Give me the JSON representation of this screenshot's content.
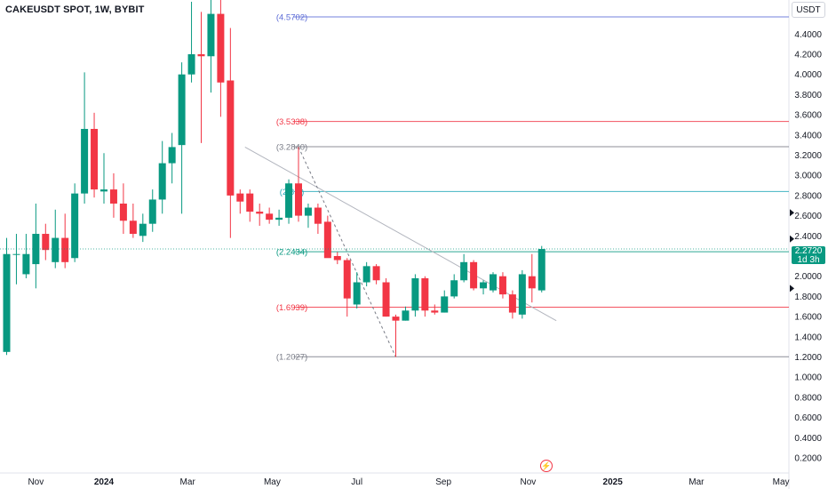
{
  "header": {
    "title": "CAKEUSDT SPOT, 1W, BYBIT",
    "currency": "USDT"
  },
  "last_price": {
    "value": "2.2720",
    "countdown": "1d 3h"
  },
  "colors": {
    "up": "#089981",
    "down": "#f23645",
    "grid": "#f0f3fa",
    "axis_text": "#131722",
    "trendline": "#b2b5be",
    "flash_icon": "#f23645"
  },
  "icons": [
    "flash-icon",
    "triangle-marker-icon"
  ],
  "chart_data": {
    "type": "candlestick",
    "x_ticks": [
      {
        "label": "Nov",
        "bold": false,
        "x": -7
      },
      {
        "label": "2024",
        "bold": true,
        "x": 0
      },
      {
        "label": "Mar",
        "bold": false,
        "x": 8.6
      },
      {
        "label": "May",
        "bold": false,
        "x": 17.3
      },
      {
        "label": "Jul",
        "bold": false,
        "x": 26.0
      },
      {
        "label": "Sep",
        "bold": false,
        "x": 34.9
      },
      {
        "label": "Nov",
        "bold": false,
        "x": 43.6
      },
      {
        "label": "2025",
        "bold": true,
        "x": 52.3
      },
      {
        "label": "Mar",
        "bold": false,
        "x": 60.9
      },
      {
        "label": "May",
        "bold": false,
        "x": 69.6
      }
    ],
    "y_ticks": [
      "4.4000",
      "4.2000",
      "4.0000",
      "3.8000",
      "3.6000",
      "3.4000",
      "3.2000",
      "3.0000",
      "2.8000",
      "2.6000",
      "2.4000",
      "2.2000",
      "2.0000",
      "1.8000",
      "1.6000",
      "1.4000",
      "1.2000",
      "1.0000",
      "0.8000",
      "0.6000",
      "0.4000",
      "0.2000"
    ],
    "ylim": [
      0.1,
      4.7
    ],
    "candles": [
      {
        "x": -10,
        "o": 1.25,
        "h": 2.38,
        "l": 1.22,
        "c": 2.22
      },
      {
        "x": -9,
        "o": 2.22,
        "h": 2.42,
        "l": 1.92,
        "c": 2.22
      },
      {
        "x": -8,
        "o": 2.02,
        "h": 2.42,
        "l": 1.98,
        "c": 2.22
      },
      {
        "x": -7,
        "o": 2.12,
        "h": 2.72,
        "l": 1.88,
        "c": 2.42
      },
      {
        "x": -6,
        "o": 2.42,
        "h": 2.52,
        "l": 2.16,
        "c": 2.26
      },
      {
        "x": -5,
        "o": 2.14,
        "h": 2.66,
        "l": 2.08,
        "c": 2.38
      },
      {
        "x": -4,
        "o": 2.38,
        "h": 2.62,
        "l": 2.08,
        "c": 2.14
      },
      {
        "x": -3,
        "o": 2.18,
        "h": 2.92,
        "l": 2.14,
        "c": 2.82
      },
      {
        "x": -2,
        "o": 2.82,
        "h": 4.02,
        "l": 2.72,
        "c": 3.46
      },
      {
        "x": -1,
        "o": 3.46,
        "h": 3.62,
        "l": 2.78,
        "c": 2.86
      },
      {
        "x": 0,
        "o": 2.84,
        "h": 3.22,
        "l": 2.72,
        "c": 2.86
      },
      {
        "x": 1,
        "o": 2.86,
        "h": 3.02,
        "l": 2.58,
        "c": 2.72
      },
      {
        "x": 2,
        "o": 2.72,
        "h": 2.92,
        "l": 2.42,
        "c": 2.55
      },
      {
        "x": 3,
        "o": 2.55,
        "h": 2.72,
        "l": 2.38,
        "c": 2.42
      },
      {
        "x": 4,
        "o": 2.4,
        "h": 2.62,
        "l": 2.34,
        "c": 2.52
      },
      {
        "x": 5,
        "o": 2.52,
        "h": 2.86,
        "l": 2.44,
        "c": 2.76
      },
      {
        "x": 6,
        "o": 2.76,
        "h": 3.34,
        "l": 2.62,
        "c": 3.12
      },
      {
        "x": 7,
        "o": 3.12,
        "h": 3.42,
        "l": 2.92,
        "c": 3.28
      },
      {
        "x": 8,
        "o": 3.3,
        "h": 4.12,
        "l": 2.62,
        "c": 4.0
      },
      {
        "x": 9,
        "o": 4.0,
        "h": 4.72,
        "l": 3.92,
        "c": 4.2
      },
      {
        "x": 10,
        "o": 4.2,
        "h": 4.62,
        "l": 3.32,
        "c": 4.18
      },
      {
        "x": 11,
        "o": 4.18,
        "h": 4.88,
        "l": 3.82,
        "c": 4.6
      },
      {
        "x": 12,
        "o": 4.6,
        "h": 4.84,
        "l": 3.58,
        "c": 3.92
      },
      {
        "x": 13,
        "o": 3.94,
        "h": 4.46,
        "l": 2.38,
        "c": 2.8
      },
      {
        "x": 14,
        "o": 2.82,
        "h": 2.86,
        "l": 2.62,
        "c": 2.74
      },
      {
        "x": 15,
        "o": 2.82,
        "h": 2.86,
        "l": 2.54,
        "c": 2.64
      },
      {
        "x": 16,
        "o": 2.64,
        "h": 2.72,
        "l": 2.5,
        "c": 2.62
      },
      {
        "x": 17,
        "o": 2.62,
        "h": 2.68,
        "l": 2.52,
        "c": 2.56
      },
      {
        "x": 18,
        "o": 2.56,
        "h": 2.66,
        "l": 2.5,
        "c": 2.58
      },
      {
        "x": 19,
        "o": 2.58,
        "h": 2.96,
        "l": 2.52,
        "c": 2.92
      },
      {
        "x": 20,
        "o": 2.92,
        "h": 3.28,
        "l": 2.54,
        "c": 2.6
      },
      {
        "x": 21,
        "o": 2.6,
        "h": 2.72,
        "l": 2.48,
        "c": 2.68
      },
      {
        "x": 22,
        "o": 2.68,
        "h": 2.72,
        "l": 2.42,
        "c": 2.52
      },
      {
        "x": 23,
        "o": 2.54,
        "h": 2.6,
        "l": 2.22,
        "c": 2.18
      },
      {
        "x": 24,
        "o": 2.2,
        "h": 2.24,
        "l": 2.12,
        "c": 2.16
      },
      {
        "x": 25,
        "o": 2.16,
        "h": 2.18,
        "l": 1.6,
        "c": 1.78
      },
      {
        "x": 26,
        "o": 1.72,
        "h": 2.04,
        "l": 1.68,
        "c": 1.94
      },
      {
        "x": 27,
        "o": 1.94,
        "h": 2.14,
        "l": 1.9,
        "c": 2.1
      },
      {
        "x": 28,
        "o": 2.1,
        "h": 2.12,
        "l": 1.92,
        "c": 1.96
      },
      {
        "x": 29,
        "o": 1.94,
        "h": 1.98,
        "l": 1.6,
        "c": 1.6
      },
      {
        "x": 30,
        "o": 1.6,
        "h": 1.62,
        "l": 1.2,
        "c": 1.56
      },
      {
        "x": 31,
        "o": 1.56,
        "h": 1.7,
        "l": 1.56,
        "c": 1.66
      },
      {
        "x": 32,
        "o": 1.66,
        "h": 2.02,
        "l": 1.6,
        "c": 1.98
      },
      {
        "x": 33,
        "o": 1.98,
        "h": 2.0,
        "l": 1.6,
        "c": 1.66
      },
      {
        "x": 34,
        "o": 1.66,
        "h": 1.72,
        "l": 1.62,
        "c": 1.64
      },
      {
        "x": 35,
        "o": 1.64,
        "h": 1.86,
        "l": 1.64,
        "c": 1.8
      },
      {
        "x": 36,
        "o": 1.8,
        "h": 2.02,
        "l": 1.78,
        "c": 1.96
      },
      {
        "x": 37,
        "o": 1.96,
        "h": 2.22,
        "l": 1.94,
        "c": 2.14
      },
      {
        "x": 38,
        "o": 2.14,
        "h": 2.16,
        "l": 1.86,
        "c": 1.88
      },
      {
        "x": 39,
        "o": 1.88,
        "h": 1.96,
        "l": 1.82,
        "c": 1.94
      },
      {
        "x": 40,
        "o": 1.86,
        "h": 2.04,
        "l": 1.84,
        "c": 2.02
      },
      {
        "x": 41,
        "o": 2.0,
        "h": 2.04,
        "l": 1.78,
        "c": 1.82
      },
      {
        "x": 42,
        "o": 1.82,
        "h": 1.86,
        "l": 1.58,
        "c": 1.64
      },
      {
        "x": 43,
        "o": 1.62,
        "h": 2.06,
        "l": 1.58,
        "c": 2.02
      },
      {
        "x": 44,
        "o": 2.0,
        "h": 2.22,
        "l": 1.74,
        "c": 1.88
      },
      {
        "x": 45,
        "o": 1.86,
        "h": 2.3,
        "l": 1.84,
        "c": 2.27
      }
    ],
    "fib_levels": [
      {
        "label": "(4.5702)",
        "value": 4.5702,
        "color": "#5b6bd6"
      },
      {
        "label": "(3.5338)",
        "value": 3.5338,
        "color": "#f23645"
      },
      {
        "label": "(3.2840)",
        "value": 3.284,
        "color": "#787b86"
      },
      {
        "label": "(2.8...)",
        "value": 2.84,
        "color": "#22a8b8"
      },
      {
        "label": "(2.2434)",
        "value": 2.2434,
        "color": "#089981"
      },
      {
        "label": "(1.6939)",
        "value": 1.6939,
        "color": "#f23645"
      },
      {
        "label": "(1.2027)",
        "value": 1.2027,
        "color": "#787b86"
      }
    ],
    "fib_label_x": 19.5,
    "fib_line_start_x": 19.5,
    "trendline": {
      "x1": 14.5,
      "y1": 3.28,
      "x2": 46.5,
      "y2": 1.56
    },
    "fib_dashed": {
      "x1": 20,
      "y1": 3.28,
      "x2": 30,
      "y2": 1.2
    },
    "y_markers": [
      2.63,
      2.37,
      1.88
    ]
  }
}
